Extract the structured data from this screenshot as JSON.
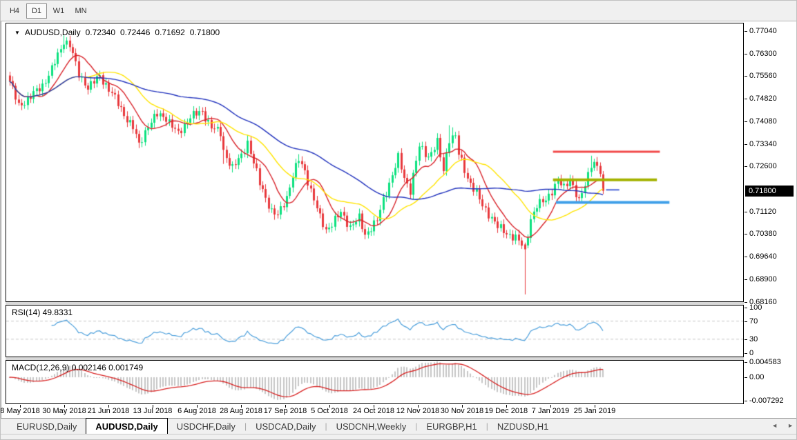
{
  "toolbar": {
    "buttons": [
      {
        "label": "H4",
        "active": false
      },
      {
        "label": "D1",
        "active": true
      },
      {
        "label": "W1",
        "active": false
      },
      {
        "label": "MN",
        "active": false
      }
    ]
  },
  "icons": {
    "dropdown": "▼",
    "scroll_left": "◄",
    "scroll_right": "►"
  },
  "title": {
    "symbol": "AUDUSD,Daily",
    "open": "0.72340",
    "high": "0.72446",
    "low": "0.71692",
    "close": "0.71800"
  },
  "rsi_panel": {
    "label": "RSI(14) 49.8331"
  },
  "macd_panel": {
    "label": "MACD(12,26,9) 0.002146 0.001749"
  },
  "chart_data": {
    "type": "candlestick",
    "symbol": "AUDUSD",
    "timeframe": "Daily",
    "last_quote": {
      "open": 0.7234,
      "high": 0.72446,
      "low": 0.71692,
      "close": 0.718
    },
    "price_axis_ticks": [
      "0.77040",
      "0.76300",
      "0.75560",
      "0.74820",
      "0.74080",
      "0.73340",
      "0.72600",
      "0.71120",
      "0.70380",
      "0.69640",
      "0.68900",
      "0.68160"
    ],
    "current_price": 0.718,
    "current_price_label": "0.71800",
    "price_top": 0.77288,
    "price_bottom": 0.68172,
    "x_labels": [
      "8 May 2018",
      "30 May 2018",
      "21 Jun 2018",
      "13 Jul 2018",
      "6 Aug 2018",
      "28 Aug 2018",
      "17 Sep 2018",
      "5 Oct 2018",
      "24 Oct 2018",
      "12 Nov 2018",
      "30 Nov 2018",
      "19 Dec 2018",
      "7 Jan 2019",
      "25 Jan 2019"
    ],
    "n_candles": 198,
    "up_color": "#0ce17f",
    "down_color": "#e8393d",
    "close_anchors": [
      [
        0,
        0.754
      ],
      [
        3,
        0.7458
      ],
      [
        5,
        0.7472
      ],
      [
        11,
        0.7525
      ],
      [
        14,
        0.758
      ],
      [
        17,
        0.7645
      ],
      [
        18,
        0.7672
      ],
      [
        20,
        0.766
      ],
      [
        23,
        0.756
      ],
      [
        26,
        0.752
      ],
      [
        30,
        0.7555
      ],
      [
        34,
        0.75
      ],
      [
        38,
        0.743
      ],
      [
        41,
        0.7388
      ],
      [
        43,
        0.733
      ],
      [
        46,
        0.7395
      ],
      [
        49,
        0.743
      ],
      [
        52,
        0.742
      ],
      [
        56,
        0.7365
      ],
      [
        60,
        0.7425
      ],
      [
        64,
        0.7438
      ],
      [
        67,
        0.739
      ],
      [
        70,
        0.7368
      ],
      [
        71,
        0.731
      ],
      [
        74,
        0.7255
      ],
      [
        77,
        0.7295
      ],
      [
        79,
        0.734
      ],
      [
        81,
        0.7272
      ],
      [
        83,
        0.7205
      ],
      [
        87,
        0.7112
      ],
      [
        89,
        0.7098
      ],
      [
        92,
        0.716
      ],
      [
        94,
        0.723
      ],
      [
        96,
        0.7282
      ],
      [
        98,
        0.7245
      ],
      [
        100,
        0.718
      ],
      [
        103,
        0.7092
      ],
      [
        105,
        0.7052
      ],
      [
        107,
        0.7072
      ],
      [
        110,
        0.7108
      ],
      [
        113,
        0.7062
      ],
      [
        116,
        0.709
      ],
      [
        118,
        0.7035
      ],
      [
        120,
        0.706
      ],
      [
        122,
        0.7082
      ],
      [
        124,
        0.715
      ],
      [
        127,
        0.7232
      ],
      [
        129,
        0.7288
      ],
      [
        131,
        0.7222
      ],
      [
        133,
        0.7182
      ],
      [
        135,
        0.7278
      ],
      [
        136,
        0.7325
      ],
      [
        139,
        0.7292
      ],
      [
        142,
        0.7338
      ],
      [
        144,
        0.7245
      ],
      [
        146,
        0.7352
      ],
      [
        148,
        0.736
      ],
      [
        149,
        0.73
      ],
      [
        152,
        0.7222
      ],
      [
        155,
        0.7172
      ],
      [
        157,
        0.713
      ],
      [
        160,
        0.7092
      ],
      [
        162,
        0.7062
      ],
      [
        165,
        0.704
      ],
      [
        168,
        0.7026
      ],
      [
        170,
        0.7002
      ],
      [
        171,
        0.699
      ],
      [
        173,
        0.7088
      ],
      [
        175,
        0.713
      ],
      [
        178,
        0.7152
      ],
      [
        180,
        0.718
      ],
      [
        182,
        0.7212
      ],
      [
        184,
        0.719
      ],
      [
        186,
        0.7222
      ],
      [
        189,
        0.7142
      ],
      [
        191,
        0.72
      ],
      [
        193,
        0.727
      ],
      [
        194,
        0.7272
      ],
      [
        196,
        0.724
      ],
      [
        197,
        0.718
      ]
    ],
    "candle_overrides": [
      {
        "i": 18,
        "h": 0.769
      },
      {
        "i": 43,
        "l": 0.732
      },
      {
        "i": 71,
        "l": 0.7268
      },
      {
        "i": 74,
        "l": 0.724
      },
      {
        "i": 79,
        "h": 0.7362
      },
      {
        "i": 88,
        "l": 0.7085
      },
      {
        "i": 96,
        "h": 0.73
      },
      {
        "i": 105,
        "l": 0.704
      },
      {
        "i": 118,
        "l": 0.7021
      },
      {
        "i": 129,
        "h": 0.731
      },
      {
        "i": 136,
        "h": 0.7338
      },
      {
        "i": 146,
        "h": 0.7395
      },
      {
        "i": 147,
        "h": 0.7388
      },
      {
        "i": 171,
        "o": 0.7004,
        "h": 0.701,
        "l": 0.684,
        "c": 0.6988
      },
      {
        "i": 193,
        "h": 0.7295
      },
      {
        "i": 197,
        "o": 0.7234,
        "h": 0.72446,
        "l": 0.71692,
        "c": 0.718
      }
    ],
    "moving_averages": [
      {
        "period": 10,
        "color": "#d8232a"
      },
      {
        "period": 25,
        "color": "#ffe400"
      },
      {
        "period": 55,
        "color": "#2132bd"
      }
    ],
    "hlines": [
      {
        "price": 0.7308,
        "color": "#f24949",
        "width": 3,
        "x1": 0.742,
        "x2": 0.887
      },
      {
        "price": 0.7216,
        "color": "#a4b200",
        "width": 4,
        "x1": 0.742,
        "x2": 0.883
      },
      {
        "price": 0.7142,
        "color": "#3f9fe8",
        "width": 4,
        "x1": 0.746,
        "x2": 0.9
      },
      {
        "price": 0.7183,
        "color": "#4a63d8",
        "width": 2,
        "x1": 0.814,
        "x2": 0.832
      }
    ],
    "rsi": {
      "period": 14,
      "value": 49.8331,
      "levels": [
        70,
        30
      ],
      "axis_ticks": [
        "100",
        "70",
        "30",
        "0"
      ],
      "color": "#4a9edb",
      "range": [
        0,
        100
      ]
    },
    "macd": {
      "fast": 12,
      "slow": 26,
      "signal": 9,
      "macd_value": 0.002146,
      "signal_value": 0.001749,
      "axis_ticks": [
        "0.004583",
        "0.00",
        "-0.007292"
      ],
      "bar_color": "#c6c6c6",
      "signal_color": "#d82020"
    }
  },
  "tabs": {
    "items": [
      {
        "label": "EURUSD,Daily",
        "active": false
      },
      {
        "label": "AUDUSD,Daily",
        "active": true
      },
      {
        "label": "USDCHF,Daily",
        "active": false
      },
      {
        "label": "USDCAD,Daily",
        "active": false
      },
      {
        "label": "USDCNH,Weekly",
        "active": false
      },
      {
        "label": "EURGBP,H1",
        "active": false
      },
      {
        "label": "NZDUSD,H1",
        "active": false
      }
    ]
  }
}
